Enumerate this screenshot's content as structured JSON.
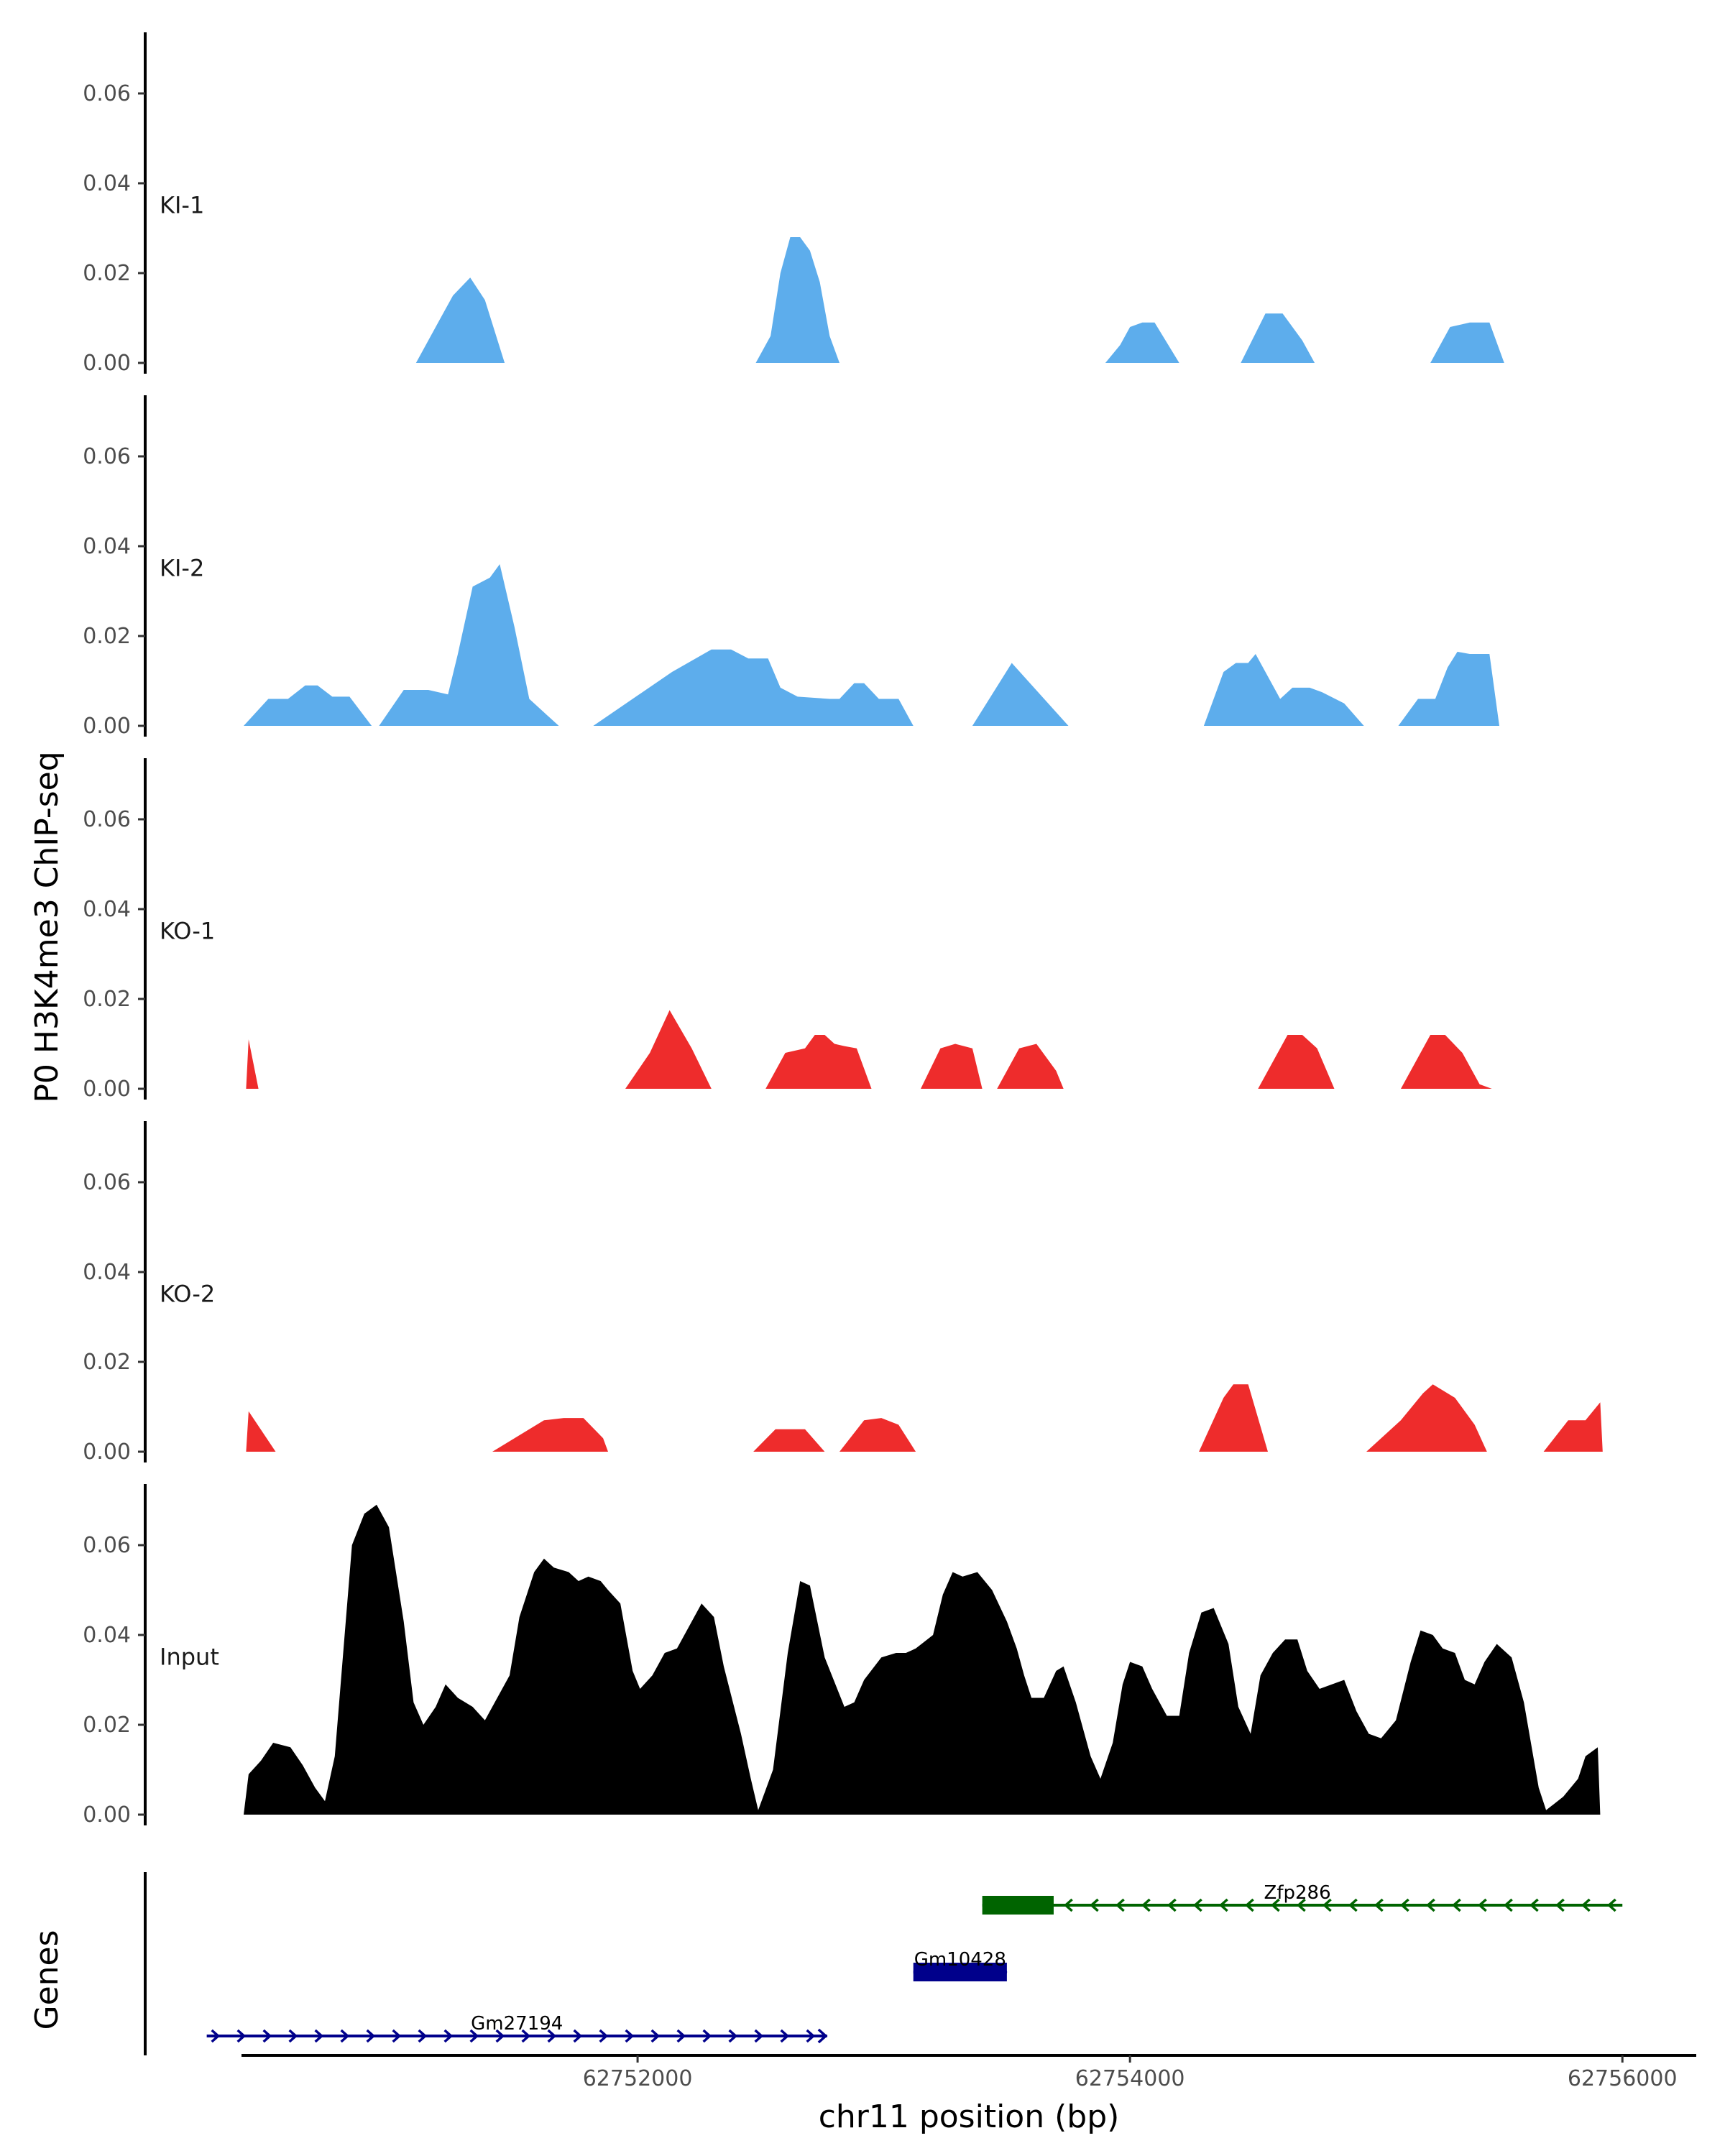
{
  "chart_data": {
    "type": "area",
    "ylabel": "P0 H3K4me3 ChIP-seq",
    "xlabel": "chr11 position (bp)",
    "xlim": [
      62750000,
      62756300
    ],
    "ylim": [
      0,
      0.073
    ],
    "y_ticks": [
      0.0,
      0.02,
      0.04,
      0.06
    ],
    "y_tick_labels": [
      "0.00",
      "0.02",
      "0.04",
      "0.06"
    ],
    "x_ticks": [
      62752000,
      62754000,
      62756000
    ],
    "x_tick_labels": [
      "62752000",
      "62754000",
      "62756000"
    ],
    "grid": false,
    "colors": {
      "KI": "#5DADEC",
      "KO": "#EE2C2C",
      "Input": "#000000"
    },
    "tracks": [
      {
        "label": "KI-1",
        "color": "#5DADEC",
        "x": [
          62751100,
          62751200,
          62751250,
          62751320,
          62751380,
          62751460,
          62751470,
          62752480,
          62752540,
          62752580,
          62752620,
          62752660,
          62752700,
          62752740,
          62752780,
          62752820,
          62753900,
          62753960,
          62754000,
          62754050,
          62754100,
          62754200,
          62754210,
          62754450,
          62754550,
          62754620,
          62754700,
          62754750,
          62754760,
          62755220,
          62755300,
          62755380,
          62755460,
          62755520,
          62755530
        ],
        "y": [
          0,
          0.01,
          0.015,
          0.019,
          0.014,
          0.0,
          0,
          0,
          0.006,
          0.02,
          0.028,
          0.028,
          0.025,
          0.018,
          0.006,
          0,
          0,
          0.004,
          0.008,
          0.009,
          0.009,
          0.0,
          0,
          0,
          0.011,
          0.011,
          0.005,
          0.0,
          0,
          0,
          0.008,
          0.009,
          0.009,
          0.0,
          0
        ]
      },
      {
        "label": "KI-2",
        "color": "#5DADEC",
        "x": [
          62750400,
          62750500,
          62750580,
          62750650,
          62750700,
          62750760,
          62750830,
          62750920,
          62750950,
          62751050,
          62751150,
          62751230,
          62751270,
          62751330,
          62751400,
          62751440,
          62751500,
          62751560,
          62751620,
          62751680,
          62751740,
          62751820,
          62752140,
          62752300,
          62752380,
          62752450,
          62752530,
          62752580,
          62752650,
          62752780,
          62752820,
          62752880,
          62752920,
          62752980,
          62753060,
          62753120,
          62753360,
          62753520,
          62753750,
          62754300,
          62754380,
          62754430,
          62754480,
          62754510,
          62754560,
          62754610,
          62754660,
          62754730,
          62754780,
          62754870,
          62754950,
          62755020,
          62755090,
          62755170,
          62755240,
          62755290,
          62755330,
          62755380,
          62755460,
          62755500,
          62755560
        ],
        "y": [
          0,
          0.006,
          0.006,
          0.009,
          0.009,
          0.0065,
          0.0065,
          0,
          0,
          0.008,
          0.008,
          0.007,
          0.016,
          0.031,
          0.033,
          0.036,
          0.022,
          0.006,
          0.003,
          0,
          0,
          0,
          0.012,
          0.017,
          0.017,
          0.015,
          0.015,
          0.0085,
          0.0065,
          0.006,
          0.006,
          0.0095,
          0.0095,
          0.006,
          0.006,
          0,
          0,
          0.014,
          0,
          0,
          0.012,
          0.014,
          0.014,
          0.016,
          0.011,
          0.006,
          0.0085,
          0.0085,
          0.0075,
          0.005,
          0,
          0,
          0,
          0.006,
          0.006,
          0.013,
          0.0165,
          0.016,
          0.016,
          0,
          0
        ]
      },
      {
        "label": "KO-1",
        "color": "#EE2C2C",
        "x": [
          62750410,
          62750420,
          62750460,
          62750470,
          62751950,
          62752050,
          62752130,
          62752220,
          62752300,
          62752330,
          62752520,
          62752600,
          62752680,
          62752720,
          62752760,
          62752800,
          62752840,
          62752890,
          62752950,
          62753150,
          62753230,
          62753290,
          62753360,
          62753400,
          62753460,
          62753550,
          62753620,
          62753700,
          62753730,
          62754520,
          62754640,
          62754700,
          62754760,
          62754830,
          62755100,
          62755220,
          62755280,
          62755350,
          62755420,
          62755470
        ],
        "y": [
          0,
          0.011,
          0.0,
          0,
          0,
          0.008,
          0.0175,
          0.009,
          0,
          0,
          0,
          0.008,
          0.009,
          0.012,
          0.012,
          0.01,
          0.0095,
          0.009,
          0,
          0,
          0.009,
          0.01,
          0.009,
          0,
          0,
          0.009,
          0.01,
          0.004,
          0,
          0,
          0.012,
          0.012,
          0.009,
          0,
          0,
          0.012,
          0.012,
          0.008,
          0.001,
          0
        ]
      },
      {
        "label": "KO-2",
        "color": "#EE2C2C",
        "x": [
          62750410,
          62750420,
          62750530,
          62750540,
          62751410,
          62751620,
          62751700,
          62751780,
          62751860,
          62751880,
          62752470,
          62752560,
          62752680,
          62752760,
          62752820,
          62752920,
          62752990,
          62753060,
          62753130,
          62754280,
          62754380,
          62754420,
          62754480,
          62754560,
          62754960,
          62755100,
          62755190,
          62755230,
          62755320,
          62755400,
          62755450,
          62755680,
          62755780,
          62755850,
          62755910,
          62755920
        ],
        "y": [
          0,
          0.009,
          0.0,
          0,
          0,
          0.007,
          0.0075,
          0.0075,
          0.003,
          0,
          0,
          0.005,
          0.005,
          0,
          0,
          0.007,
          0.0075,
          0.006,
          0,
          0,
          0.012,
          0.015,
          0.015,
          0,
          0,
          0.007,
          0.013,
          0.015,
          0.012,
          0.006,
          0,
          0,
          0.007,
          0.007,
          0.011,
          0
        ]
      },
      {
        "label": "Input",
        "color": "#000000",
        "x": [
          62750400,
          62750420,
          62750470,
          62750520,
          62750590,
          62750640,
          62750690,
          62750730,
          62750770,
          62750810,
          62750840,
          62750890,
          62750940,
          62750990,
          62751050,
          62751090,
          62751130,
          62751180,
          62751220,
          62751270,
          62751330,
          62751380,
          62751420,
          62751480,
          62751520,
          62751580,
          62751620,
          62751660,
          62751720,
          62751760,
          62751800,
          62751850,
          62751880,
          62751930,
          62751980,
          62752010,
          62752060,
          62752110,
          62752160,
          62752200,
          62752260,
          62752310,
          62752350,
          62752420,
          62752460,
          62752490,
          62752550,
          62752610,
          62752660,
          62752700,
          62752760,
          62752840,
          62752880,
          62752920,
          62752990,
          62753050,
          62753090,
          62753130,
          62753200,
          62753240,
          62753280,
          62753320,
          62753380,
          62753440,
          62753500,
          62753540,
          62753570,
          62753600,
          62753650,
          62753700,
          62753730,
          62753780,
          62753840,
          62753880,
          62753930,
          62753970,
          62754000,
          62754050,
          62754090,
          62754150,
          62754200,
          62754240,
          62754290,
          62754340,
          62754400,
          62754440,
          62754490,
          62754530,
          62754580,
          62754630,
          62754680,
          62754720,
          62754770,
          62754820,
          62754870,
          62754920,
          62754970,
          62755020,
          62755080,
          62755140,
          62755180,
          62755230,
          62755270,
          62755320,
          62755360,
          62755400,
          62755440,
          62755490,
          62755550,
          62755600,
          62755660,
          62755690,
          62755760,
          62755820,
          62755850,
          62755900,
          62755910
        ],
        "y": [
          0,
          0.009,
          0.012,
          0.016,
          0.015,
          0.011,
          0.006,
          0.003,
          0.013,
          0.04,
          0.06,
          0.067,
          0.069,
          0.064,
          0.043,
          0.025,
          0.02,
          0.024,
          0.029,
          0.026,
          0.024,
          0.021,
          0.025,
          0.031,
          0.044,
          0.054,
          0.057,
          0.055,
          0.054,
          0.052,
          0.053,
          0.052,
          0.05,
          0.047,
          0.032,
          0.028,
          0.031,
          0.036,
          0.037,
          0.041,
          0.047,
          0.044,
          0.033,
          0.018,
          0.008,
          0.001,
          0.01,
          0.036,
          0.052,
          0.051,
          0.035,
          0.024,
          0.025,
          0.03,
          0.035,
          0.036,
          0.036,
          0.037,
          0.04,
          0.049,
          0.054,
          0.053,
          0.054,
          0.05,
          0.043,
          0.037,
          0.031,
          0.026,
          0.026,
          0.032,
          0.033,
          0.025,
          0.013,
          0.008,
          0.016,
          0.029,
          0.034,
          0.033,
          0.028,
          0.022,
          0.022,
          0.036,
          0.045,
          0.046,
          0.038,
          0.024,
          0.018,
          0.031,
          0.036,
          0.039,
          0.039,
          0.032,
          0.028,
          0.029,
          0.03,
          0.023,
          0.018,
          0.017,
          0.021,
          0.034,
          0.041,
          0.04,
          0.037,
          0.036,
          0.03,
          0.029,
          0.034,
          0.038,
          0.035,
          0.025,
          0.006,
          0.001,
          0.004,
          0.008,
          0.013,
          0.015,
          0
        ]
      }
    ],
    "genes_track": {
      "label": "Genes",
      "genes": [
        {
          "name": "Zfp286",
          "start": 62753400,
          "end": 62756000,
          "strand": "-",
          "exon_start": 62753400,
          "exon_end": 62753690,
          "color": "#006400",
          "row": 1
        },
        {
          "name": "Gm10428",
          "start": 62753120,
          "end": 62753500,
          "strand": "+",
          "exon_start": 62753120,
          "exon_end": 62753500,
          "color": "#00008B",
          "row": 2
        },
        {
          "name": "Gm27194",
          "start": 62750250,
          "end": 62752770,
          "strand": "+",
          "exon_start": null,
          "exon_end": null,
          "color": "#00008B",
          "row": 3
        }
      ]
    }
  }
}
